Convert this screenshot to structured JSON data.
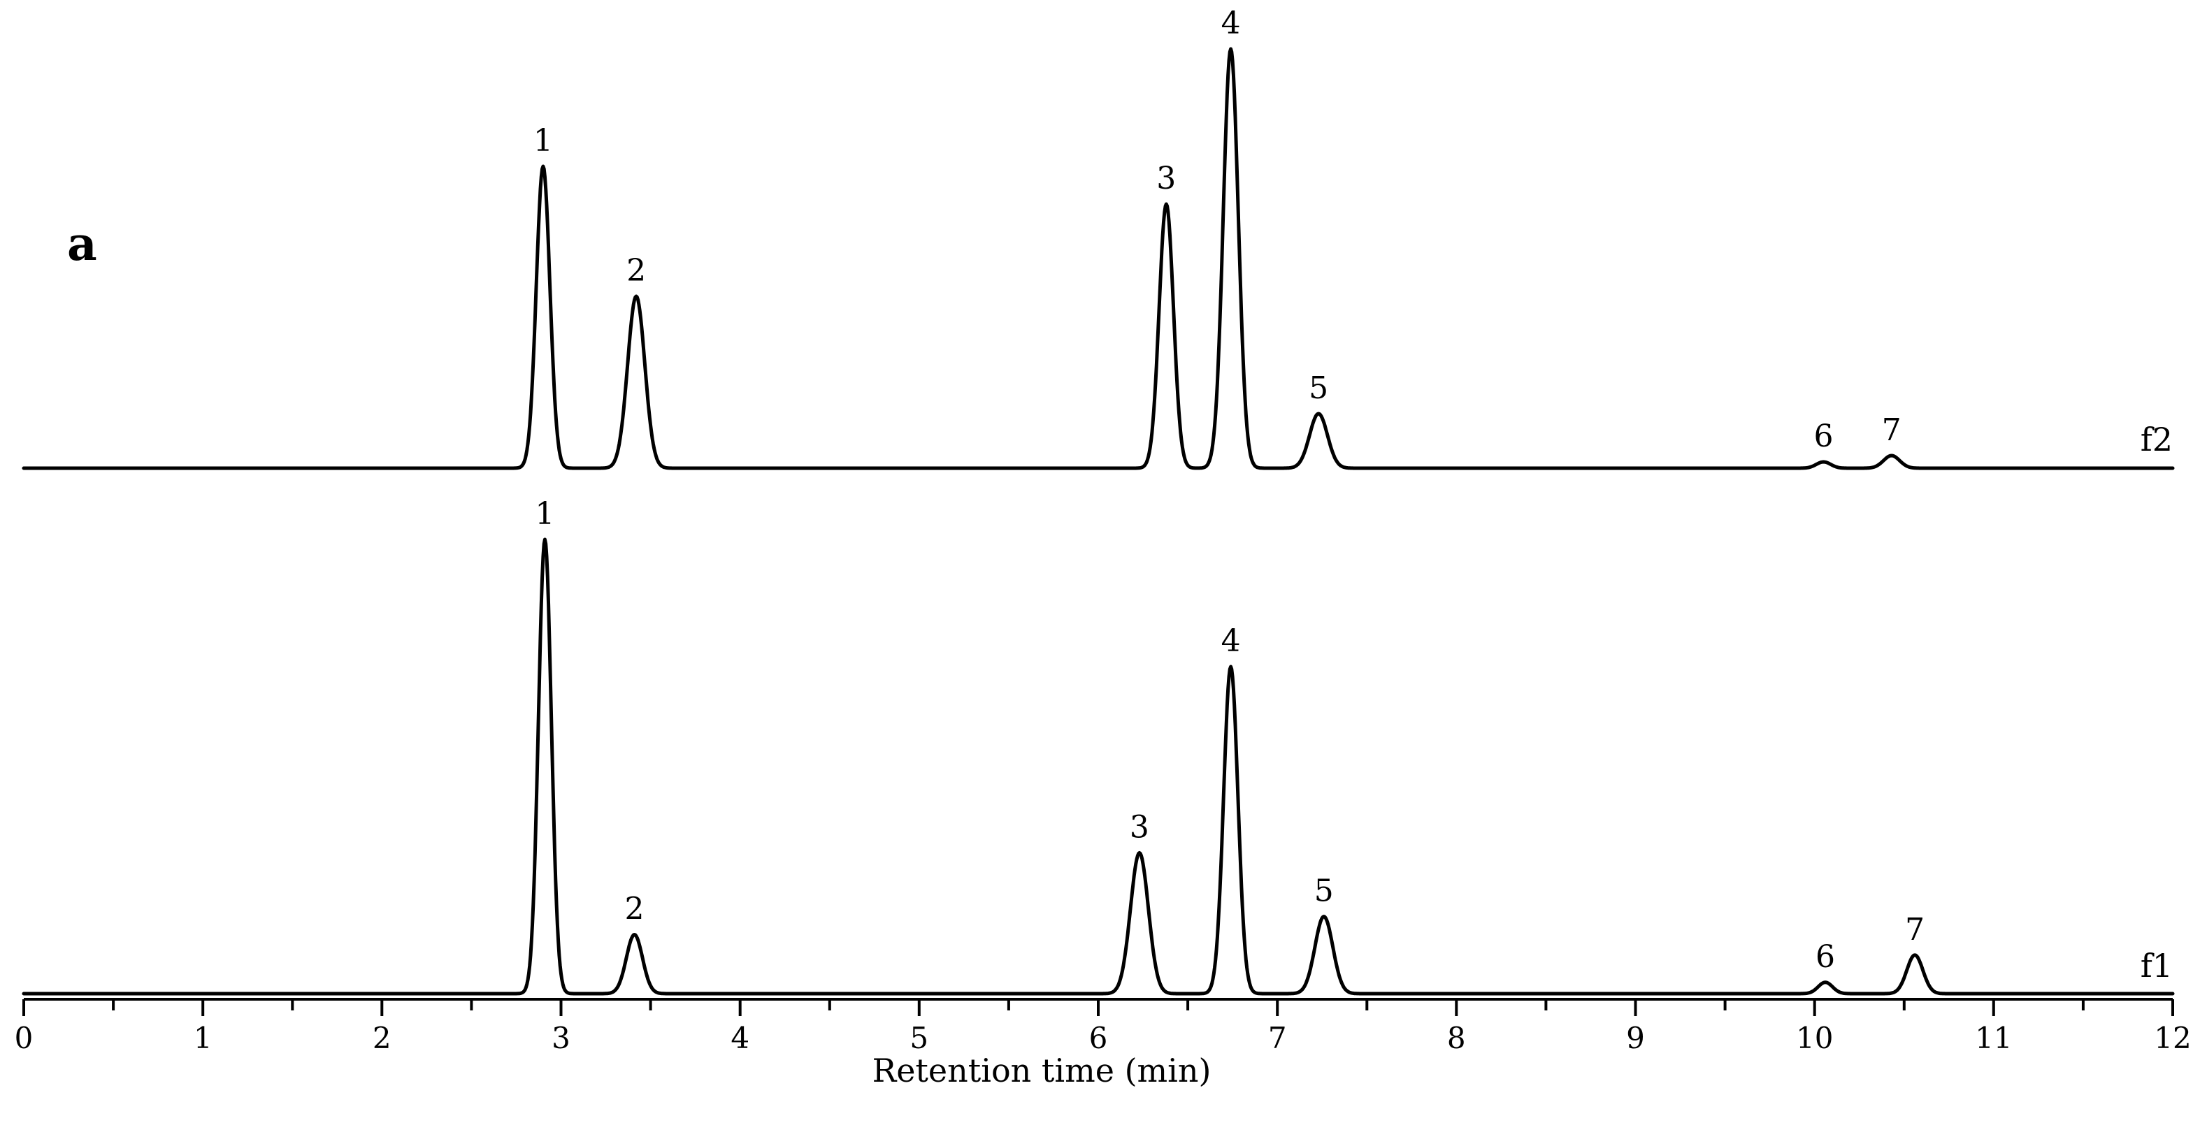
{
  "panel_label": "a",
  "chart_data": {
    "type": "line",
    "title": "",
    "xlabel": "Retention time (min)",
    "ylabel": "",
    "xlim": [
      0,
      12
    ],
    "x_ticks": [
      "0",
      "1",
      "2",
      "3",
      "4",
      "5",
      "6",
      "7",
      "8",
      "9",
      "10",
      "11",
      "12"
    ],
    "grid": false,
    "series": [
      {
        "name": "f2",
        "peaks": [
          {
            "label": "1",
            "rt": 2.9,
            "height": 0.72,
            "width": 0.038
          },
          {
            "label": "2",
            "rt": 3.42,
            "height": 0.41,
            "width": 0.048
          },
          {
            "label": "3",
            "rt": 6.38,
            "height": 0.63,
            "width": 0.04
          },
          {
            "label": "4",
            "rt": 6.74,
            "height": 1.0,
            "width": 0.042
          },
          {
            "label": "5",
            "rt": 7.23,
            "height": 0.13,
            "width": 0.05
          },
          {
            "label": "6",
            "rt": 10.05,
            "height": 0.015,
            "width": 0.04
          },
          {
            "label": "7",
            "rt": 10.43,
            "height": 0.03,
            "width": 0.045
          }
        ]
      },
      {
        "name": "f1",
        "peaks": [
          {
            "label": "1",
            "rt": 2.91,
            "height": 1.0,
            "width": 0.036
          },
          {
            "label": "2",
            "rt": 3.41,
            "height": 0.13,
            "width": 0.045
          },
          {
            "label": "3",
            "rt": 6.23,
            "height": 0.31,
            "width": 0.05
          },
          {
            "label": "4",
            "rt": 6.74,
            "height": 0.72,
            "width": 0.04
          },
          {
            "label": "5",
            "rt": 7.26,
            "height": 0.17,
            "width": 0.05
          },
          {
            "label": "6",
            "rt": 10.06,
            "height": 0.025,
            "width": 0.04
          },
          {
            "label": "7",
            "rt": 10.56,
            "height": 0.085,
            "width": 0.045
          }
        ]
      }
    ]
  }
}
